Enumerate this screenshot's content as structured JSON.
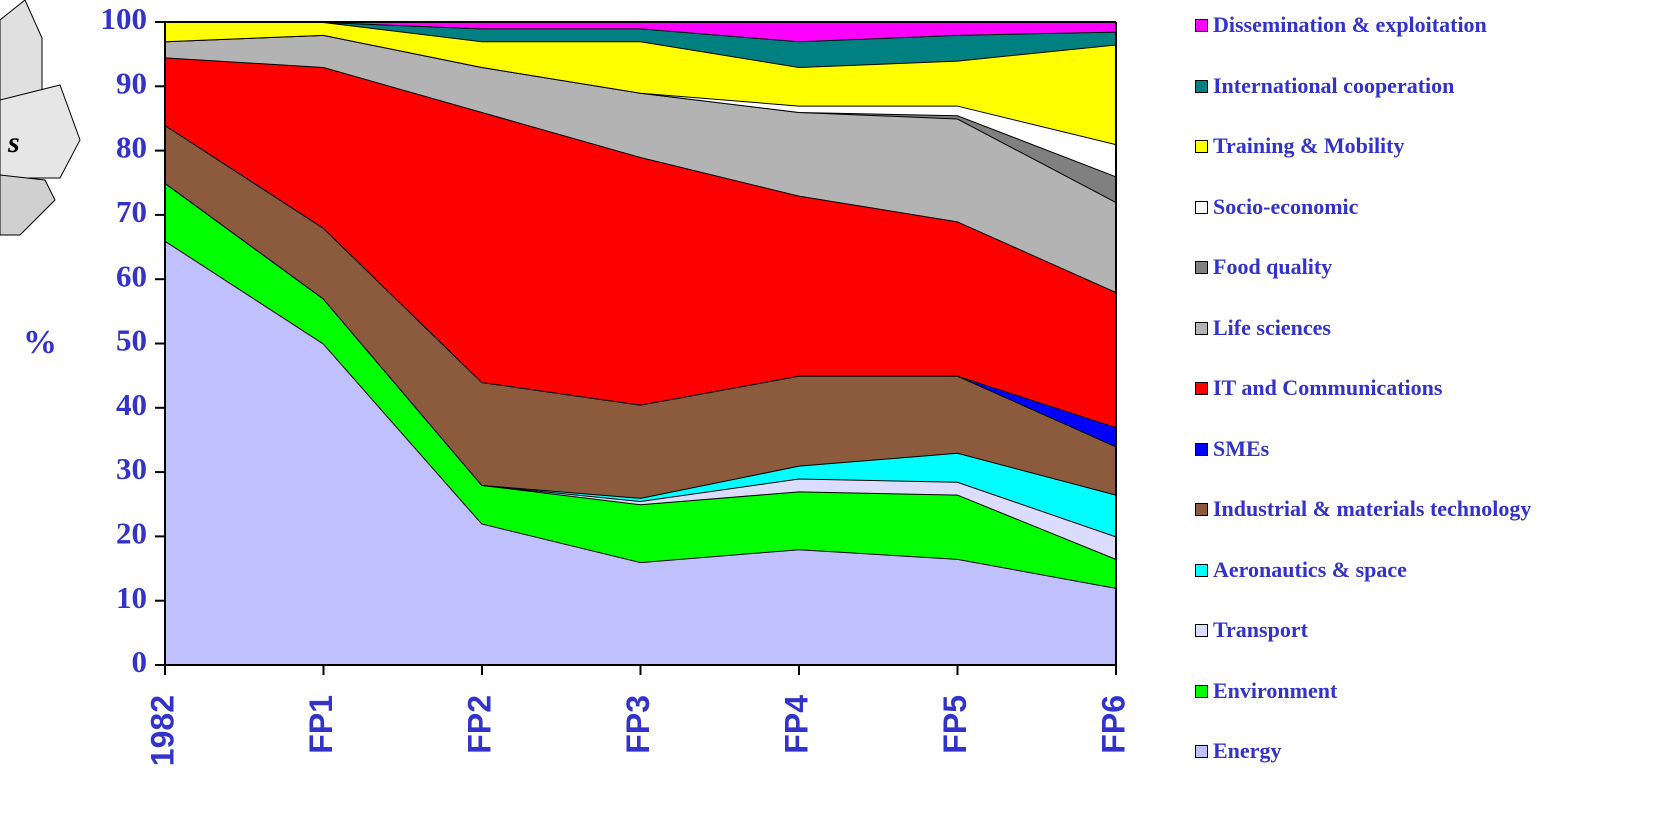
{
  "chart_data": {
    "type": "stacked_area",
    "y_label": "%",
    "side_text": "s",
    "categories": [
      "1982",
      "FP1",
      "FP2",
      "FP3",
      "FP4",
      "FP5",
      "FP6"
    ],
    "ylim": [
      0,
      100
    ],
    "yticks": [
      0,
      10,
      20,
      30,
      40,
      50,
      60,
      70,
      80,
      90,
      100
    ],
    "series": [
      {
        "name": "Energy",
        "color": "#c0c0ff",
        "values": [
          66,
          50,
          22,
          16,
          18,
          16.5,
          12
        ]
      },
      {
        "name": "Environment",
        "color": "#00ff00",
        "values": [
          9,
          7,
          6,
          9,
          9,
          10,
          4.5
        ]
      },
      {
        "name": "Transport",
        "color": "#dcdcff",
        "values": [
          0,
          0,
          0,
          0.5,
          2,
          2,
          3.5
        ]
      },
      {
        "name": "Aeronautics & space",
        "color": "#00ffff",
        "values": [
          0,
          0,
          0,
          0.5,
          2,
          4.5,
          6.5
        ]
      },
      {
        "name": "Industrial & materials technology",
        "color": "#8c5a3c",
        "values": [
          9,
          11,
          16,
          14.5,
          14,
          12,
          7.5
        ]
      },
      {
        "name": "SMEs",
        "color": "#0000ff",
        "values": [
          0,
          0,
          0,
          0,
          0,
          0,
          3
        ]
      },
      {
        "name": "IT and Communications",
        "color": "#ff0000",
        "values": [
          10.5,
          25,
          42,
          38.5,
          28,
          24,
          21
        ]
      },
      {
        "name": "Life sciences",
        "color": "#b3b3b3",
        "values": [
          2.5,
          5,
          7,
          10,
          13,
          16,
          14
        ]
      },
      {
        "name": "Food quality",
        "color": "#808080",
        "values": [
          0,
          0,
          0,
          0,
          0,
          0.5,
          4
        ]
      },
      {
        "name": "Socio-economic",
        "color": "#ffffff",
        "values": [
          0,
          0,
          0,
          0,
          1,
          1.5,
          5
        ]
      },
      {
        "name": "Training & Mobility",
        "color": "#ffff00",
        "values": [
          3,
          2,
          4,
          8,
          6,
          7,
          15.5
        ]
      },
      {
        "name": "International cooperation",
        "color": "#008080",
        "values": [
          0,
          0,
          2,
          2,
          4,
          4,
          2
        ]
      },
      {
        "name": "Dissemination & exploitation",
        "color": "#ff00ff",
        "values": [
          0,
          0,
          1,
          1,
          3,
          2,
          1.5
        ]
      }
    ]
  }
}
